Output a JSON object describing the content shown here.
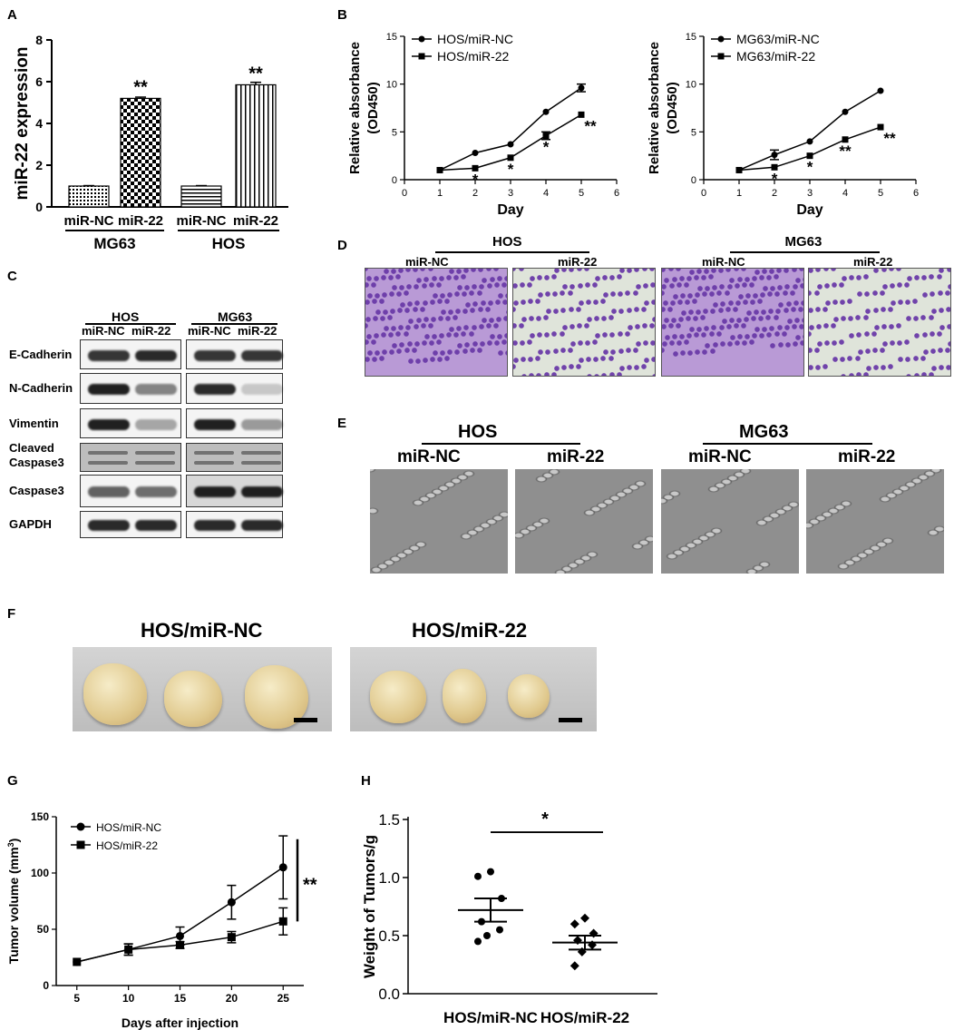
{
  "panels": {
    "A": {
      "label": "A",
      "chart_data": {
        "type": "bar",
        "ylabel": "miR-22 expression",
        "ylim": [
          0,
          8
        ],
        "yticks": [
          "0",
          "2",
          "4",
          "6",
          "8"
        ],
        "categories": [
          "miR-NC",
          "miR-22",
          "miR-NC",
          "miR-22"
        ],
        "groups": [
          "MG63",
          "HOS"
        ],
        "values": [
          1.0,
          5.2,
          1.0,
          5.85
        ],
        "errors": [
          0.02,
          0.06,
          0.02,
          0.12
        ],
        "annotations": [
          "",
          "**",
          "",
          "**"
        ]
      }
    },
    "B": {
      "label": "B",
      "chart_data": [
        {
          "type": "line",
          "xlabel": "Day",
          "ylabel": "Relative absorbance (OD450)",
          "xlim": [
            0,
            6
          ],
          "ylim": [
            0,
            15
          ],
          "xticks": [
            "0",
            "1",
            "2",
            "3",
            "4",
            "5",
            "6"
          ],
          "yticks": [
            "0",
            "5",
            "10",
            "15"
          ],
          "x": [
            1,
            2,
            3,
            4,
            5
          ],
          "series": [
            {
              "name": "HOS/miR-NC",
              "marker": "circle",
              "values": [
                1.0,
                2.8,
                3.7,
                7.1,
                9.6
              ],
              "errors": [
                0,
                0,
                0,
                0,
                0.4
              ]
            },
            {
              "name": "HOS/miR-22",
              "marker": "square",
              "values": [
                1.0,
                1.2,
                2.3,
                4.6,
                6.8
              ],
              "errors": [
                0,
                0,
                0,
                0.4,
                0
              ]
            }
          ],
          "significance": [
            "",
            "*",
            "*",
            "*",
            "**"
          ]
        },
        {
          "type": "line",
          "xlabel": "Day",
          "ylabel": "Relative absorbance (OD450)",
          "xlim": [
            0,
            6
          ],
          "ylim": [
            0,
            15
          ],
          "xticks": [
            "0",
            "1",
            "2",
            "3",
            "4",
            "5",
            "6"
          ],
          "yticks": [
            "0",
            "5",
            "10",
            "15"
          ],
          "x": [
            1,
            2,
            3,
            4,
            5
          ],
          "series": [
            {
              "name": "MG63/miR-NC",
              "marker": "circle",
              "values": [
                1.0,
                2.6,
                4.0,
                7.1,
                9.3
              ],
              "errors": [
                0,
                0.5,
                0,
                0,
                0
              ]
            },
            {
              "name": "MG63/miR-22",
              "marker": "square",
              "values": [
                1.0,
                1.3,
                2.5,
                4.2,
                5.5
              ],
              "errors": [
                0,
                0,
                0,
                0,
                0
              ]
            }
          ],
          "significance": [
            "",
            "*",
            "*",
            "**",
            "**"
          ]
        }
      ]
    },
    "C": {
      "label": "C",
      "groups": [
        "HOS",
        "MG63"
      ],
      "lanes": [
        "miR-NC",
        "miR-22",
        "miR-NC",
        "miR-22"
      ],
      "rows": [
        "E-Cadherin",
        "N-Cadherin",
        "Vimentin",
        "Cleaved Caspase3",
        "Caspase3",
        "GAPDH"
      ],
      "row_line1": [
        "E-Cadherin",
        "N-Cadherin",
        "Vimentin",
        "Cleaved",
        "Caspase3",
        "GAPDH"
      ],
      "row_line2": [
        "",
        "",
        "",
        "Caspase3",
        "",
        ""
      ]
    },
    "D": {
      "label": "D",
      "groups": [
        "HOS",
        "MG63"
      ],
      "images": [
        "miR-NC",
        "miR-22",
        "miR-NC",
        "miR-22"
      ]
    },
    "E": {
      "label": "E",
      "groups": [
        "HOS",
        "MG63"
      ],
      "images": [
        "miR-NC",
        "miR-22",
        "miR-NC",
        "miR-22"
      ]
    },
    "F": {
      "label": "F",
      "groups": [
        "HOS/miR-NC",
        "HOS/miR-22"
      ]
    },
    "G": {
      "label": "G",
      "chart_data": {
        "type": "line",
        "xlabel": "Days after injection",
        "ylabel": "Tumor volume (mm3)",
        "ylabel_main": "Tumor volume (mm",
        "ylabel_sup": "3",
        "ylabel_end": ")",
        "xlim": [
          3,
          27
        ],
        "ylim": [
          0,
          150
        ],
        "xticks": [
          "5",
          "10",
          "15",
          "20",
          "25"
        ],
        "yticks": [
          "0",
          "50",
          "100",
          "150"
        ],
        "x": [
          5,
          10,
          15,
          20,
          25
        ],
        "series": [
          {
            "name": "HOS/miR-NC",
            "marker": "circle",
            "values": [
              21,
              32,
              44,
              74,
              105
            ],
            "errors": [
              0,
              5,
              8,
              15,
              28
            ]
          },
          {
            "name": "HOS/miR-22",
            "marker": "square",
            "values": [
              21,
              32,
              36,
              43,
              57
            ],
            "errors": [
              0,
              5,
              3,
              5,
              12
            ]
          }
        ],
        "significance_label": "**"
      }
    },
    "H": {
      "label": "H",
      "chart_data": {
        "type": "scatter",
        "ylabel": "Weight of Tumors/g",
        "ylim": [
          0,
          1.5
        ],
        "yticks": [
          "0.0",
          "0.5",
          "1.0",
          "1.5"
        ],
        "categories": [
          "HOS/miR-NC",
          "HOS/miR-22"
        ],
        "series": [
          {
            "name": "HOS/miR-NC",
            "marker": "circle",
            "values": [
              1.05,
              1.01,
              0.82,
              0.62,
              0.55,
              0.5,
              0.45
            ],
            "mean": 0.72,
            "sem": 0.1
          },
          {
            "name": "HOS/miR-22",
            "marker": "diamond",
            "values": [
              0.65,
              0.6,
              0.52,
              0.46,
              0.42,
              0.36,
              0.24
            ],
            "mean": 0.44,
            "sem": 0.06
          }
        ],
        "significance_label": "*"
      }
    }
  },
  "colors": {
    "crystal_violet": "#7a4fb0",
    "background_light": "#eef0ea",
    "phase_gray": "#8e8e8e",
    "tumor": "#e8d8a8",
    "tumor_bg": "#c8c8c8"
  }
}
